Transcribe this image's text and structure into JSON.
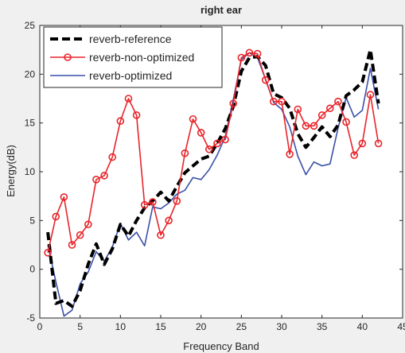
{
  "chart_data": {
    "type": "line",
    "title": "right ear",
    "xlabel": "Frequency Band",
    "ylabel": "Energy(dB)",
    "xlim": [
      0,
      45
    ],
    "ylim": [
      -5,
      25
    ],
    "xticks": [
      0,
      5,
      10,
      15,
      20,
      25,
      30,
      35,
      40,
      45
    ],
    "yticks": [
      -5,
      0,
      5,
      10,
      15,
      20,
      25
    ],
    "grid": false,
    "legend_position": "top-left",
    "series": [
      {
        "name": "reverb-reference",
        "color": "#000000",
        "style": "dashed",
        "marker": "none",
        "x": [
          1,
          2,
          3,
          4,
          5,
          6,
          7,
          8,
          9,
          10,
          11,
          12,
          13,
          14,
          15,
          16,
          17,
          18,
          19,
          20,
          21,
          22,
          23,
          24,
          25,
          26,
          27,
          28,
          29,
          30,
          31,
          32,
          33,
          34,
          35,
          36,
          37,
          38,
          39,
          40,
          41,
          42
        ],
        "values": [
          3.8,
          -3.5,
          -3.2,
          -3.8,
          -2.2,
          0.5,
          2.6,
          0.5,
          2.1,
          4.6,
          3.4,
          5.0,
          6.3,
          7.0,
          7.9,
          7.0,
          8.5,
          9.9,
          10.6,
          11.3,
          11.6,
          12.9,
          14.4,
          16.7,
          20.3,
          21.7,
          21.8,
          20.9,
          18.0,
          17.6,
          16.5,
          13.9,
          12.5,
          13.5,
          14.6,
          13.6,
          14.8,
          17.8,
          18.4,
          19.2,
          22.5,
          17.0
        ]
      },
      {
        "name": "reverb-non-optimized",
        "color": "#e8242a",
        "style": "solid",
        "marker": "circle",
        "x": [
          1,
          2,
          3,
          4,
          5,
          6,
          7,
          8,
          9,
          10,
          11,
          12,
          13,
          14,
          15,
          16,
          17,
          18,
          19,
          20,
          21,
          22,
          23,
          24,
          25,
          26,
          27,
          28,
          29,
          30,
          31,
          32,
          33,
          34,
          35,
          36,
          37,
          38,
          39,
          40,
          41,
          42
        ],
        "values": [
          1.7,
          5.4,
          7.4,
          2.5,
          3.5,
          4.6,
          9.2,
          9.6,
          11.5,
          15.2,
          17.5,
          15.8,
          6.6,
          6.9,
          3.5,
          5.0,
          7.0,
          11.9,
          15.4,
          14.0,
          12.3,
          12.9,
          13.3,
          17.0,
          21.7,
          22.2,
          22.1,
          19.4,
          17.2,
          17.2,
          11.8,
          16.4,
          14.7,
          14.7,
          15.8,
          16.5,
          17.2,
          15.1,
          11.7,
          12.9,
          17.9,
          12.9
        ]
      },
      {
        "name": "reverb-optimized",
        "color": "#3a50a8",
        "style": "solid",
        "marker": "none",
        "x": [
          1,
          2,
          3,
          4,
          5,
          6,
          7,
          8,
          9,
          10,
          11,
          12,
          13,
          14,
          15,
          16,
          17,
          18,
          19,
          20,
          21,
          22,
          23,
          24,
          25,
          26,
          27,
          28,
          29,
          30,
          31,
          32,
          33,
          34,
          35,
          36,
          37,
          38,
          39,
          40,
          41,
          42
        ],
        "values": [
          2.5,
          -1.3,
          -4.8,
          -4.2,
          -1.5,
          -0.3,
          1.8,
          0.8,
          2.3,
          4.7,
          3.0,
          3.8,
          2.4,
          6.4,
          6.2,
          6.8,
          7.7,
          8.1,
          9.4,
          9.2,
          10.2,
          11.7,
          13.6,
          17.4,
          21.5,
          22.2,
          21.7,
          19.5,
          17.1,
          16.4,
          14.6,
          11.6,
          9.7,
          11.0,
          10.6,
          10.8,
          14.5,
          17.6,
          15.6,
          16.3,
          20.6,
          16.4
        ]
      }
    ]
  }
}
